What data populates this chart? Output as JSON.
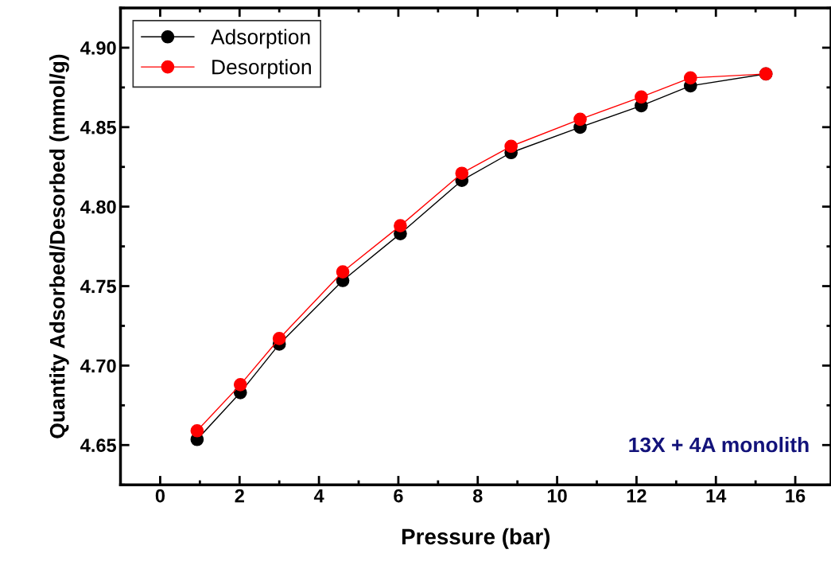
{
  "chart_data": {
    "type": "line",
    "xlabel": "Pressure (bar)",
    "ylabel": "Quantity Adsorbed/Desorbed (mmol/g)",
    "x": [
      0.93,
      2.02,
      3.0,
      4.6,
      6.05,
      7.6,
      8.84,
      10.58,
      12.12,
      13.36,
      15.26
    ],
    "series": [
      {
        "name": "Adsorption",
        "color": "#000000",
        "values": [
          4.6535,
          4.683,
          4.7135,
          4.7535,
          4.783,
          4.8165,
          4.834,
          4.85,
          4.8635,
          4.876,
          4.8835
        ]
      },
      {
        "name": "Desorption",
        "color": "#ff0000",
        "values": [
          4.659,
          4.688,
          4.717,
          4.759,
          4.788,
          4.821,
          4.838,
          4.855,
          4.869,
          4.881,
          4.8835
        ]
      }
    ],
    "xlim": [
      -1,
      16.9
    ],
    "xticks": [
      0,
      2,
      4,
      6,
      8,
      10,
      12,
      14,
      16
    ],
    "ylim": [
      4.625,
      4.925
    ],
    "yticks": [
      4.65,
      {
        "value": 4.7,
        "label": "4.70"
      },
      4.75,
      {
        "value": 4.8,
        "label": "4.80"
      },
      4.85,
      {
        "value": 4.9,
        "label": "4.90"
      }
    ],
    "annotations": [
      "13X + 4A monolith"
    ],
    "legend": "top left",
    "marker": "circle",
    "line_style": "solid",
    "grid": false
  }
}
